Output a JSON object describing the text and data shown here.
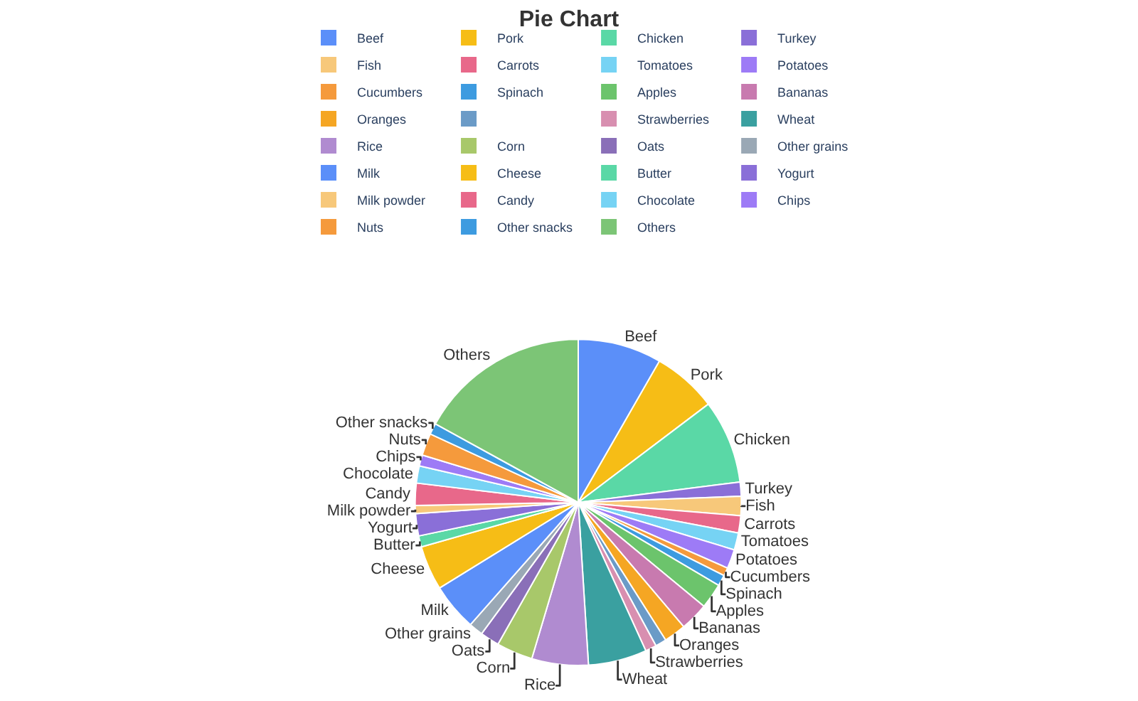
{
  "chart_data": {
    "type": "pie",
    "title": "Pie Chart",
    "legend": "top",
    "categories": [
      "Beef",
      "Pork",
      "Chicken",
      "Turkey",
      "Fish",
      "Carrots",
      "Tomatoes",
      "Potatoes",
      "Cucumbers",
      "Spinach",
      "Apples",
      "Bananas",
      "Oranges",
      null,
      "Strawberries",
      "Wheat",
      "Rice",
      "Corn",
      "Oats",
      "Other grains",
      "Milk",
      "Cheese",
      "Butter",
      "Yogurt",
      "Milk powder",
      "Candy",
      "Chocolate",
      "Chips",
      "Nuts",
      "Other snacks",
      "Others"
    ],
    "values": [
      8.3,
      6.4,
      8.3,
      1.4,
      1.9,
      1.7,
      1.7,
      1.9,
      0.8,
      1.1,
      2.5,
      2.8,
      2.2,
      1.1,
      1.1,
      5.8,
      5.6,
      3.6,
      1.9,
      1.4,
      4.7,
      4.4,
      1.1,
      2.2,
      0.8,
      2.2,
      1.7,
      1.1,
      2.2,
      1.1,
      17.0
    ],
    "colors": [
      "#5b8ff9",
      "#f6bd16",
      "#5ad8a6",
      "#8a6fd8",
      "#f7c87a",
      "#e8688a",
      "#76d3f4",
      "#9d7bf6",
      "#f59a3c",
      "#3d9be0",
      "#6cc46c",
      "#c87aaf",
      "#f5a623",
      "#6b9bc7",
      "#d88fb0",
      "#3aa0a0",
      "#b08bd0",
      "#a8c86a",
      "#8a6fb8",
      "#9aa8b5",
      "#5b8ff9",
      "#f6bd16",
      "#5ad8a6",
      "#8a6fd8",
      "#f7c87a",
      "#e8688a",
      "#76d3f4",
      "#9d7bf6",
      "#f59a3c",
      "#3d9be0",
      "#7cc576"
    ]
  }
}
